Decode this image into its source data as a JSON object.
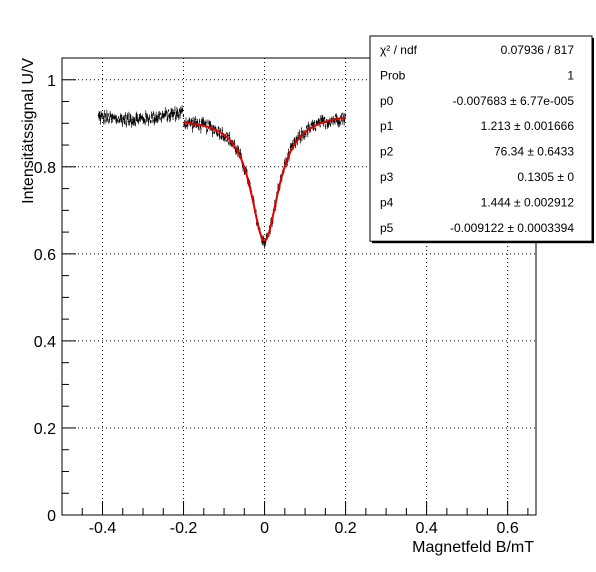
{
  "chart_data": {
    "type": "scatter",
    "title": "",
    "xlabel": "Magnetfeld B/mT",
    "ylabel": "Intensitätssignal U/V",
    "xlim": [
      -0.5,
      0.67
    ],
    "ylim": [
      0,
      1.05
    ],
    "x_ticks": [
      -0.4,
      -0.2,
      0,
      0.2,
      0.4,
      0.6
    ],
    "x_tick_labels": [
      "-0.4",
      "-0.2",
      "0",
      "0.2",
      "0.4",
      "0.6"
    ],
    "y_ticks": [
      0,
      0.2,
      0.4,
      0.6,
      0.8,
      1
    ],
    "y_tick_labels": [
      "0",
      "0.2",
      "0.4",
      "0.6",
      "0.8",
      "1"
    ],
    "grid": true,
    "series": [
      {
        "kind": "points_with_errorbars",
        "color": "#000000",
        "x_range": [
          -0.41,
          0.2
        ],
        "values_description": "dense measured points"
      },
      {
        "kind": "fit_curve",
        "color": "#e00000",
        "x_range": [
          -0.2,
          0.2
        ]
      }
    ],
    "stats_box": {
      "placement": "top-right",
      "rows": [
        {
          "label": "χ² / ndf",
          "value": "0.07936 / 817"
        },
        {
          "label": "Prob",
          "value": "1"
        },
        {
          "label": "p0",
          "value": "-0.007683 ± 6.77e-005"
        },
        {
          "label": "p1",
          "value": "1.213 ± 0.001666"
        },
        {
          "label": "p2",
          "value": "76.34 ± 0.6433"
        },
        {
          "label": "p3",
          "value": "0.1305 ±      0"
        },
        {
          "label": "p4",
          "value": "1.444 ± 0.002912"
        },
        {
          "label": "p5",
          "value": "-0.009122 ± 0.0003394"
        }
      ]
    },
    "fit_params": {
      "p0": -0.007683,
      "p1": 1.213,
      "p2": 76.34,
      "p3": 0.1305,
      "p4": 1.444,
      "p5": -0.009122
    }
  }
}
